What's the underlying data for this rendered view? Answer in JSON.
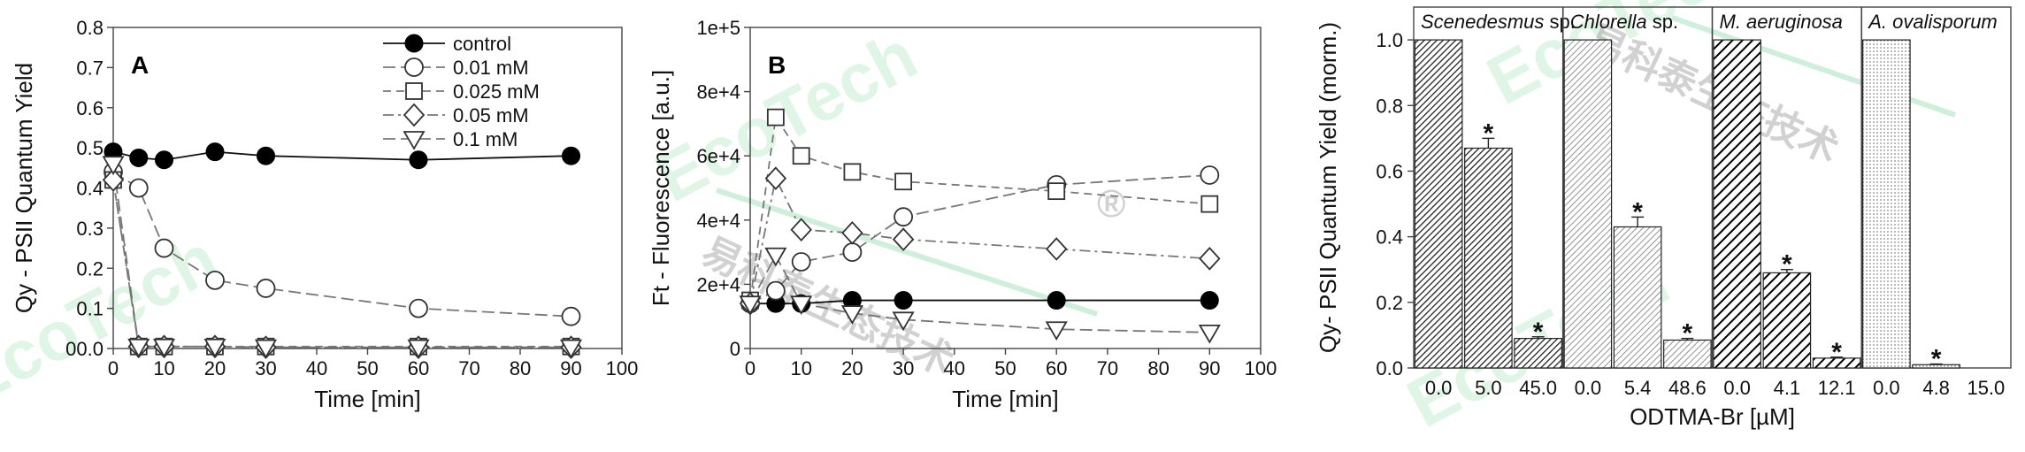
{
  "chart_data": [
    {
      "type": "line",
      "panel_label": "A",
      "xlabel": "Time [min]",
      "ylabel": "Qy - PSII Quantum Yield",
      "xlim": [
        0,
        100
      ],
      "ylim": [
        0.0,
        0.8
      ],
      "xticks": [
        "0",
        "10",
        "20",
        "30",
        "40",
        "50",
        "60",
        "70",
        "80",
        "90",
        "100"
      ],
      "yticks": [
        "00.0",
        "0.1",
        "0.2",
        "0.3",
        "0.4",
        "0.5",
        "0.6",
        "0.7",
        "0.8"
      ],
      "series": [
        {
          "name": "control",
          "marker": "circle-filled",
          "dash": "solid",
          "x": [
            0,
            5,
            10,
            20,
            30,
            60,
            90
          ],
          "y": [
            0.49,
            0.475,
            0.47,
            0.49,
            0.48,
            0.47,
            0.48
          ]
        },
        {
          "name": "0.01  mM",
          "marker": "circle-open",
          "dash": "long",
          "x": [
            0,
            5,
            10,
            20,
            30,
            60,
            90
          ],
          "y": [
            0.44,
            0.4,
            0.25,
            0.17,
            0.15,
            0.1,
            0.08
          ]
        },
        {
          "name": "0.025 mM",
          "marker": "square-open",
          "dash": "medium",
          "x": [
            0,
            5,
            10,
            20,
            30,
            60,
            90
          ],
          "y": [
            0.42,
            0.005,
            0.005,
            0.005,
            0.005,
            0.005,
            0.005
          ]
        },
        {
          "name": "0.05  mM",
          "marker": "diamond-open",
          "dash": "dashdot",
          "x": [
            0,
            5,
            10,
            20,
            30,
            60,
            90
          ],
          "y": [
            0.42,
            0.005,
            0.005,
            0.005,
            0.003,
            0.003,
            0.003
          ]
        },
        {
          "name": "0.1   mM",
          "marker": "triangle-open",
          "dash": "long",
          "x": [
            0,
            5,
            10,
            20,
            30,
            60,
            90
          ],
          "y": [
            0.46,
            0.005,
            0.005,
            0.005,
            0.003,
            0.003,
            0.003
          ]
        }
      ],
      "legend": "top-right"
    },
    {
      "type": "line",
      "panel_label": "B",
      "xlabel": "Time [min]",
      "ylabel": "Ft - Fluorescence [a.u.]",
      "xlim": [
        0,
        100
      ],
      "ylim": [
        0,
        100000
      ],
      "xticks": [
        "0",
        "10",
        "20",
        "30",
        "40",
        "50",
        "60",
        "70",
        "80",
        "90",
        "100"
      ],
      "yticks": [
        "0",
        "2e+4",
        "4e+4",
        "6e+4",
        "8e+4",
        "1e+5"
      ],
      "series": [
        {
          "name": "control",
          "marker": "circle-filled",
          "dash": "solid",
          "x": [
            0,
            5,
            10,
            20,
            30,
            60,
            90
          ],
          "y": [
            14000,
            14000,
            14000,
            15000,
            15000,
            15000,
            15000
          ]
        },
        {
          "name": "0.01  mM",
          "marker": "circle-open",
          "dash": "long",
          "x": [
            0,
            5,
            10,
            20,
            30,
            60,
            90
          ],
          "y": [
            14000,
            18000,
            27000,
            30000,
            41000,
            51000,
            54000
          ]
        },
        {
          "name": "0.025 mM",
          "marker": "square-open",
          "dash": "medium",
          "x": [
            0,
            5,
            10,
            20,
            30,
            60,
            90
          ],
          "y": [
            15000,
            72000,
            60000,
            55000,
            52000,
            49000,
            45000
          ]
        },
        {
          "name": "0.05  mM",
          "marker": "diamond-open",
          "dash": "dashdot",
          "x": [
            0,
            5,
            10,
            20,
            30,
            60,
            90
          ],
          "y": [
            14000,
            53000,
            37000,
            36000,
            34000,
            31000,
            28000
          ]
        },
        {
          "name": "0.1   mM",
          "marker": "triangle-open",
          "dash": "long",
          "x": [
            0,
            5,
            10,
            20,
            30,
            60,
            90
          ],
          "y": [
            14000,
            29000,
            14000,
            11000,
            9000,
            6000,
            5000
          ]
        }
      ]
    },
    {
      "type": "bar",
      "xlabel": "ODTMA-Br [µM]",
      "ylabel": "Qy- PSII Quantum Yield (morm.)",
      "ylim": [
        0.0,
        1.1
      ],
      "yticks": [
        "0.0",
        "0.2",
        "0.4",
        "0.6",
        "0.8",
        "1.0"
      ],
      "groups": [
        {
          "name": "Scenedesmus",
          "name_suffix": " sp.",
          "pattern": "dense",
          "categories": [
            "0.0",
            "5.0",
            "45.0"
          ],
          "values": [
            1.0,
            0.67,
            0.09
          ],
          "errors": [
            0.0,
            0.03,
            0.005
          ],
          "significant": [
            "",
            "*",
            "*"
          ]
        },
        {
          "name": "Chlorella",
          "name_suffix": " sp.",
          "pattern": "light",
          "categories": [
            "0.0",
            "5.4",
            "48.6"
          ],
          "values": [
            1.0,
            0.43,
            0.085
          ],
          "errors": [
            0.0,
            0.03,
            0.005
          ],
          "significant": [
            "",
            "*",
            "*"
          ]
        },
        {
          "name": "M. aeruginosa",
          "name_suffix": "",
          "pattern": "bold",
          "categories": [
            "0.0",
            "4.1",
            "12.1"
          ],
          "values": [
            1.0,
            0.29,
            0.03
          ],
          "errors": [
            0.0,
            0.01,
            0.003
          ],
          "significant": [
            "",
            "*",
            "*"
          ]
        },
        {
          "name": "A. ovalisporum",
          "name_suffix": "",
          "pattern": "dotted",
          "categories": [
            "0.0",
            "4.8",
            "15.0"
          ],
          "values": [
            1.0,
            0.01,
            0.0
          ],
          "errors": [
            0.0,
            0.002,
            0.0
          ],
          "significant": [
            "",
            "*",
            ""
          ]
        }
      ]
    }
  ],
  "watermark": {
    "latin": "EcoTech",
    "registered": "®",
    "chinese": "易科泰生态技术"
  }
}
